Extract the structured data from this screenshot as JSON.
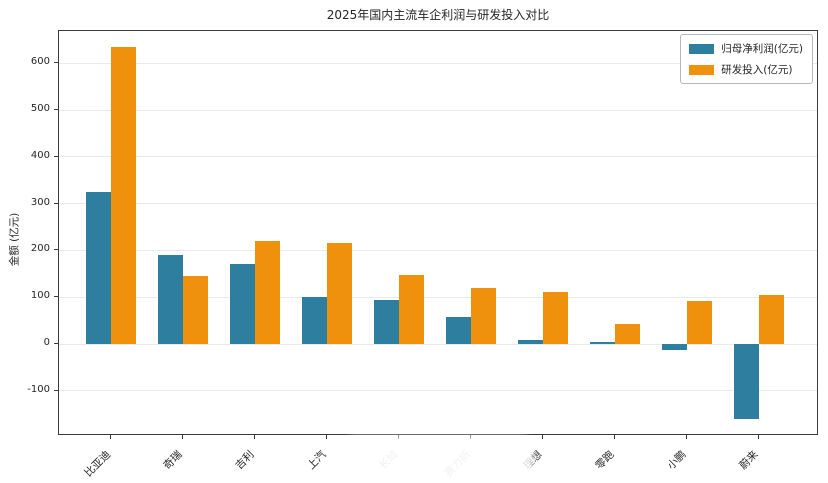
{
  "figure": {
    "background": "#ffffff",
    "spine_color": "#3a3a3a",
    "grid_color": "#e9e9e9"
  },
  "chart_data": {
    "type": "bar",
    "title": "2025年国内主流车企利润与研发投入对比",
    "ylabel": "金额 (亿元)",
    "xlabel": "",
    "categories": [
      "比亚迪",
      "奇瑞",
      "吉利",
      "上汽",
      "长城",
      "赛力斯",
      "理想",
      "零跑",
      "小鹏",
      "蔚来"
    ],
    "series": [
      {
        "name": "归母净利润(亿元)",
        "color": "#2e7f9f",
        "values": [
          325,
          190,
          170,
          100,
          95,
          58,
          9,
          5,
          -12,
          -160
        ]
      },
      {
        "name": "研发投入(亿元)",
        "color": "#f0910e",
        "values": [
          635,
          145,
          220,
          215,
          148,
          120,
          112,
          42,
          92,
          105
        ]
      }
    ],
    "y_ticks": [
      -100,
      0,
      100,
      200,
      300,
      400,
      500,
      600
    ],
    "ylim": [
      -196,
      669
    ],
    "grid": true,
    "legend_position": "upper right",
    "bar_orientation": "vertical",
    "x_tick_rotation_deg": 45
  },
  "watermark": {
    "present": true,
    "description": "semi-transparent white blob obscuring 5th and 6th x-axis labels"
  }
}
